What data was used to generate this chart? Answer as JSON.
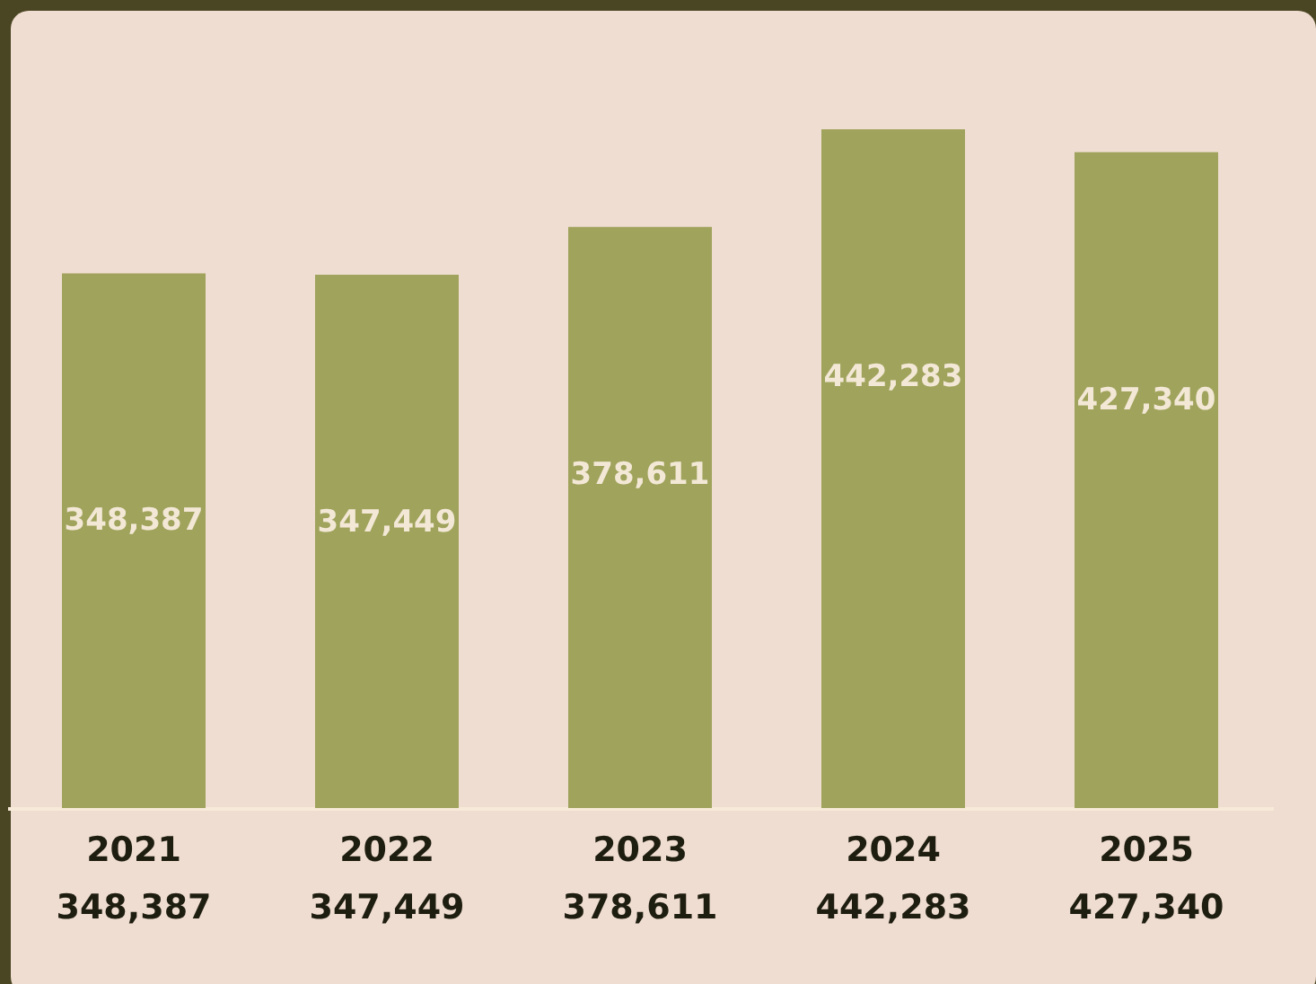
{
  "chart_data": {
    "type": "bar",
    "categories": [
      "2021",
      "2022",
      "2023",
      "2024",
      "2025"
    ],
    "values": [
      348387,
      347449,
      378611,
      442283,
      427340
    ],
    "color": "#9fa35c",
    "value_labels": [
      "348,387",
      "347,449",
      "378,611",
      "442,283",
      "427,340"
    ]
  }
}
